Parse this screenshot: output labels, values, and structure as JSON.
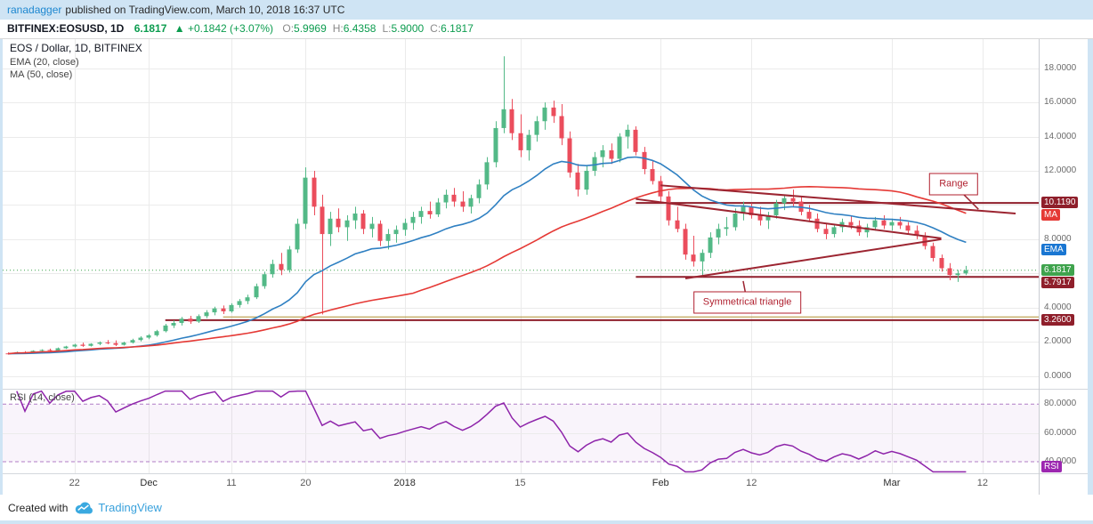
{
  "header": {
    "author": "ranadagger",
    "published_text": "published on TradingView.com, March 10, 2018 16:37 UTC"
  },
  "symbol_bar": {
    "symbol": "BITFINEX:EOSUSD, 1D",
    "price": "6.1817",
    "change": "▲ +0.1842 (+3.07%)",
    "ohlc": [
      {
        "k": "O:",
        "v": "5.9969"
      },
      {
        "k": "H:",
        "v": "6.4358"
      },
      {
        "k": "L:",
        "v": "5.9000"
      },
      {
        "k": "C:",
        "v": "6.1817"
      }
    ]
  },
  "legend": {
    "title": "EOS / Dollar, 1D, BITFINEX",
    "ema": "EMA (20, close)",
    "ma": "MA (50, close)"
  },
  "rsi_legend": "RSI (14, close)",
  "footer": {
    "created_with": "Created with",
    "brand": "TradingView"
  },
  "colors": {
    "frame_blue": "#cfe4f4",
    "link_blue": "#1d87d0",
    "header_green": "#0c9c4f",
    "up": "#53b987",
    "down": "#eb4d5c",
    "ema_line": "#2f80c2",
    "ma_line": "#e53935",
    "trend": "#9c2531",
    "maroon_label": "#8f1f2b",
    "green_label": "#3fa34d",
    "ema_label": "#1976d2",
    "ma_label": "#e53935",
    "rsi_line": "#8e24aa",
    "rsi_band": "#b07cc6",
    "rsi_label": "#9c27b0",
    "grid": "#ebebeb",
    "last_price_dotted": "#3fa34d",
    "gold_line": "#b08d2f"
  },
  "chart_data": {
    "type": "candlestick",
    "title": "EOS / Dollar, 1D, BITFINEX",
    "interval": "1D",
    "total_slots": 125.5,
    "price_axis": {
      "min": -0.75,
      "max": 19.7,
      "ticks": [
        {
          "v": 0,
          "label": "0.0000"
        },
        {
          "v": 2,
          "label": "2.0000"
        },
        {
          "v": 4,
          "label": "4.0000"
        },
        {
          "v": 6,
          "label": "6.0000"
        },
        {
          "v": 8,
          "label": "8.0000"
        },
        {
          "v": 10,
          "label": "10.0000"
        },
        {
          "v": 12,
          "label": "12.0000"
        },
        {
          "v": 14,
          "label": "14.0000"
        },
        {
          "v": 16,
          "label": "16.0000"
        },
        {
          "v": 18,
          "label": "18.0000"
        }
      ]
    },
    "time_ticks": [
      {
        "label": "22",
        "i": 8,
        "major": false
      },
      {
        "label": "Dec",
        "i": 17,
        "major": true
      },
      {
        "label": "11",
        "i": 27,
        "major": false
      },
      {
        "label": "20",
        "i": 36,
        "major": false
      },
      {
        "label": "2018",
        "i": 48,
        "major": true
      },
      {
        "label": "15",
        "i": 62,
        "major": false
      },
      {
        "label": "Feb",
        "i": 79,
        "major": true
      },
      {
        "label": "12",
        "i": 90,
        "major": false
      },
      {
        "label": "Mar",
        "i": 107,
        "major": true
      },
      {
        "label": "12",
        "i": 118,
        "major": false
      }
    ],
    "candles": [
      [
        1.32,
        1.38,
        1.25,
        1.3
      ],
      [
        1.3,
        1.42,
        1.28,
        1.39
      ],
      [
        1.39,
        1.45,
        1.33,
        1.36
      ],
      [
        1.36,
        1.5,
        1.34,
        1.47
      ],
      [
        1.47,
        1.56,
        1.42,
        1.52
      ],
      [
        1.52,
        1.6,
        1.46,
        1.49
      ],
      [
        1.49,
        1.66,
        1.47,
        1.62
      ],
      [
        1.62,
        1.76,
        1.58,
        1.72
      ],
      [
        1.72,
        1.88,
        1.66,
        1.83
      ],
      [
        1.83,
        1.95,
        1.7,
        1.76
      ],
      [
        1.76,
        1.92,
        1.72,
        1.88
      ],
      [
        1.88,
        2.02,
        1.8,
        1.96
      ],
      [
        1.96,
        2.1,
        1.86,
        1.92
      ],
      [
        1.92,
        2.08,
        1.75,
        1.82
      ],
      [
        1.82,
        2.0,
        1.78,
        1.95
      ],
      [
        1.95,
        2.18,
        1.9,
        2.1
      ],
      [
        2.1,
        2.32,
        2.02,
        2.24
      ],
      [
        2.24,
        2.45,
        2.15,
        2.38
      ],
      [
        2.38,
        2.7,
        2.3,
        2.62
      ],
      [
        2.62,
        3.05,
        2.55,
        2.95
      ],
      [
        2.95,
        3.25,
        2.8,
        3.1
      ],
      [
        3.1,
        3.45,
        2.95,
        3.35
      ],
      [
        3.35,
        3.52,
        3.05,
        3.18
      ],
      [
        3.18,
        3.6,
        3.1,
        3.5
      ],
      [
        3.5,
        3.85,
        3.38,
        3.72
      ],
      [
        3.72,
        4.05,
        3.55,
        3.95
      ],
      [
        3.95,
        4.12,
        3.62,
        3.78
      ],
      [
        3.78,
        4.25,
        3.7,
        4.15
      ],
      [
        4.15,
        4.5,
        4.0,
        4.38
      ],
      [
        4.38,
        4.75,
        4.2,
        4.6
      ],
      [
        4.6,
        5.4,
        4.5,
        5.25
      ],
      [
        5.25,
        6.1,
        5.1,
        5.95
      ],
      [
        5.95,
        6.8,
        5.75,
        6.55
      ],
      [
        6.55,
        7.2,
        5.9,
        6.2
      ],
      [
        6.2,
        7.6,
        6.05,
        7.4
      ],
      [
        7.4,
        9.2,
        7.2,
        8.9
      ],
      [
        8.9,
        12.2,
        8.6,
        11.6
      ],
      [
        11.6,
        12.0,
        9.4,
        9.9
      ],
      [
        9.9,
        10.6,
        3.6,
        8.3
      ],
      [
        8.3,
        9.6,
        7.6,
        9.2
      ],
      [
        9.2,
        9.8,
        8.4,
        8.7
      ],
      [
        8.7,
        9.4,
        7.9,
        9.1
      ],
      [
        9.1,
        9.9,
        8.6,
        9.5
      ],
      [
        9.5,
        9.7,
        8.3,
        8.6
      ],
      [
        8.6,
        9.3,
        8.1,
        8.9
      ],
      [
        8.9,
        9.1,
        7.6,
        7.9
      ],
      [
        7.9,
        8.6,
        7.4,
        8.3
      ],
      [
        8.3,
        8.8,
        7.8,
        8.55
      ],
      [
        8.55,
        9.2,
        8.2,
        8.95
      ],
      [
        8.95,
        9.6,
        8.55,
        9.3
      ],
      [
        9.3,
        9.9,
        8.9,
        9.65
      ],
      [
        9.65,
        10.2,
        9.2,
        9.45
      ],
      [
        9.45,
        10.4,
        9.3,
        10.15
      ],
      [
        10.15,
        10.9,
        9.8,
        10.6
      ],
      [
        10.6,
        11.0,
        9.9,
        10.2
      ],
      [
        10.2,
        10.8,
        9.6,
        9.9
      ],
      [
        9.9,
        10.6,
        9.5,
        10.4
      ],
      [
        10.4,
        11.5,
        10.1,
        11.2
      ],
      [
        11.2,
        12.8,
        10.9,
        12.5
      ],
      [
        12.5,
        14.9,
        12.2,
        14.5
      ],
      [
        14.5,
        18.7,
        14.2,
        15.6
      ],
      [
        15.6,
        16.2,
        13.8,
        14.2
      ],
      [
        14.2,
        15.3,
        12.8,
        13.2
      ],
      [
        13.2,
        14.4,
        12.6,
        14.1
      ],
      [
        14.1,
        15.2,
        13.7,
        14.9
      ],
      [
        14.9,
        16.0,
        14.4,
        15.7
      ],
      [
        15.7,
        16.1,
        14.8,
        15.2
      ],
      [
        15.2,
        15.9,
        13.5,
        13.9
      ],
      [
        13.9,
        14.3,
        11.6,
        11.9
      ],
      [
        11.9,
        12.4,
        10.5,
        10.9
      ],
      [
        10.9,
        12.3,
        10.6,
        12.0
      ],
      [
        12.0,
        13.1,
        11.7,
        12.8
      ],
      [
        12.8,
        13.5,
        12.2,
        13.2
      ],
      [
        13.2,
        13.6,
        12.4,
        12.7
      ],
      [
        12.7,
        14.2,
        12.5,
        14.0
      ],
      [
        14.0,
        14.7,
        13.3,
        14.4
      ],
      [
        14.4,
        14.6,
        12.9,
        13.1
      ],
      [
        13.1,
        13.4,
        11.8,
        12.1
      ],
      [
        12.1,
        12.6,
        11.2,
        11.4
      ],
      [
        11.4,
        11.7,
        10.2,
        10.5
      ],
      [
        10.5,
        10.8,
        8.8,
        9.1
      ],
      [
        9.1,
        9.9,
        8.4,
        8.6
      ],
      [
        8.6,
        8.9,
        6.8,
        7.1
      ],
      [
        7.1,
        8.2,
        6.4,
        6.7
      ],
      [
        6.7,
        7.4,
        5.8,
        7.2
      ],
      [
        7.2,
        8.4,
        6.9,
        8.1
      ],
      [
        8.1,
        8.9,
        7.7,
        8.6
      ],
      [
        8.6,
        9.3,
        8.2,
        8.7
      ],
      [
        8.7,
        9.8,
        8.5,
        9.5
      ],
      [
        9.5,
        10.2,
        9.1,
        9.9
      ],
      [
        9.9,
        10.1,
        9.2,
        9.4
      ],
      [
        9.4,
        9.9,
        8.8,
        9.1
      ],
      [
        9.1,
        9.6,
        8.6,
        9.4
      ],
      [
        9.4,
        10.3,
        9.2,
        10.1
      ],
      [
        10.1,
        10.6,
        9.7,
        10.4
      ],
      [
        10.4,
        10.9,
        9.9,
        10.2
      ],
      [
        10.2,
        10.5,
        9.4,
        9.6
      ],
      [
        9.6,
        10.0,
        9.0,
        9.2
      ],
      [
        9.2,
        9.5,
        8.4,
        8.6
      ],
      [
        8.6,
        8.9,
        8.0,
        8.3
      ],
      [
        8.3,
        8.9,
        8.1,
        8.7
      ],
      [
        8.7,
        9.2,
        8.4,
        9.0
      ],
      [
        9.0,
        9.4,
        8.6,
        8.8
      ],
      [
        8.8,
        9.1,
        8.2,
        8.4
      ],
      [
        8.4,
        8.9,
        8.1,
        8.7
      ],
      [
        8.7,
        9.3,
        8.5,
        9.1
      ],
      [
        9.1,
        9.4,
        8.6,
        8.8
      ],
      [
        8.8,
        9.2,
        8.5,
        9.0
      ],
      [
        9.0,
        9.3,
        8.6,
        8.8
      ],
      [
        8.8,
        9.0,
        8.3,
        8.5
      ],
      [
        8.5,
        8.8,
        8.0,
        8.2
      ],
      [
        8.2,
        8.4,
        7.4,
        7.6
      ],
      [
        7.6,
        7.8,
        6.7,
        6.9
      ],
      [
        6.9,
        7.1,
        6.1,
        6.3
      ],
      [
        6.3,
        6.6,
        5.6,
        5.9
      ],
      [
        5.9,
        6.2,
        5.5,
        6.0
      ],
      [
        5.9969,
        6.4358,
        5.9,
        6.1817
      ]
    ],
    "overlays": [
      {
        "name": "EMA",
        "period": 20
      },
      {
        "name": "MA",
        "period": 50
      }
    ],
    "price_lines": [
      {
        "v": 10.119,
        "from_i": 76,
        "label": "10.1190",
        "color": "#8f1f2b",
        "width": 2
      },
      {
        "v": 5.7917,
        "from_i": 76,
        "label": "5.7917",
        "color": "#8f1f2b",
        "width": 2
      },
      {
        "v": 3.26,
        "from_i": 19,
        "label": "3.2600",
        "color": "#8f1f2b",
        "width": 2
      },
      {
        "v": 3.45,
        "from_i": 26,
        "color": "#b08d2f",
        "width": 1
      },
      {
        "v": 6.1817,
        "from_i": -1,
        "color": "#3fa34d",
        "width": 1,
        "dash": "1,3"
      }
    ],
    "trend_lines": [
      {
        "from": {
          "i": 76,
          "v": 10.35
        },
        "to": {
          "i": 113,
          "v": 8.05
        }
      },
      {
        "from": {
          "i": 82,
          "v": 5.7
        },
        "to": {
          "i": 113,
          "v": 8.0
        }
      },
      {
        "from": {
          "i": 79,
          "v": 11.15
        },
        "to": {
          "i": 122,
          "v": 9.5
        }
      }
    ],
    "annotations": [
      {
        "text": "Range",
        "box_i": 114.5,
        "box_v": 11.2,
        "tip_i": 117.5,
        "tip_v": 9.75
      },
      {
        "text": "Symmetrical triangle",
        "box_i": 89.5,
        "box_v": 4.3,
        "tip_i": 89,
        "tip_v": 5.55
      }
    ],
    "axis_badges": [
      {
        "label": "10.1190",
        "v": 10.119,
        "bg": "#8f1f2b"
      },
      {
        "label": "MA",
        "v": 9.45,
        "bg": "#e53935"
      },
      {
        "label": "EMA",
        "v": 7.35,
        "bg": "#1976d2"
      },
      {
        "label": "6.1817",
        "v": 6.1817,
        "bg": "#3fa34d"
      },
      {
        "label": "5.7917",
        "v": 5.7917,
        "bg": "#8f1f2b"
      },
      {
        "label": "3.2600",
        "v": 3.26,
        "bg": "#8f1f2b"
      }
    ],
    "rsi": {
      "period": 14,
      "axis_min": 32,
      "axis_max": 90,
      "bands": [
        80,
        40
      ],
      "mid": 60,
      "ticks": [
        {
          "v": 80,
          "label": "80.0000"
        },
        {
          "v": 60,
          "label": "60.0000"
        },
        {
          "v": 40,
          "label": "40.0000"
        }
      ],
      "badge": "RSI"
    }
  }
}
